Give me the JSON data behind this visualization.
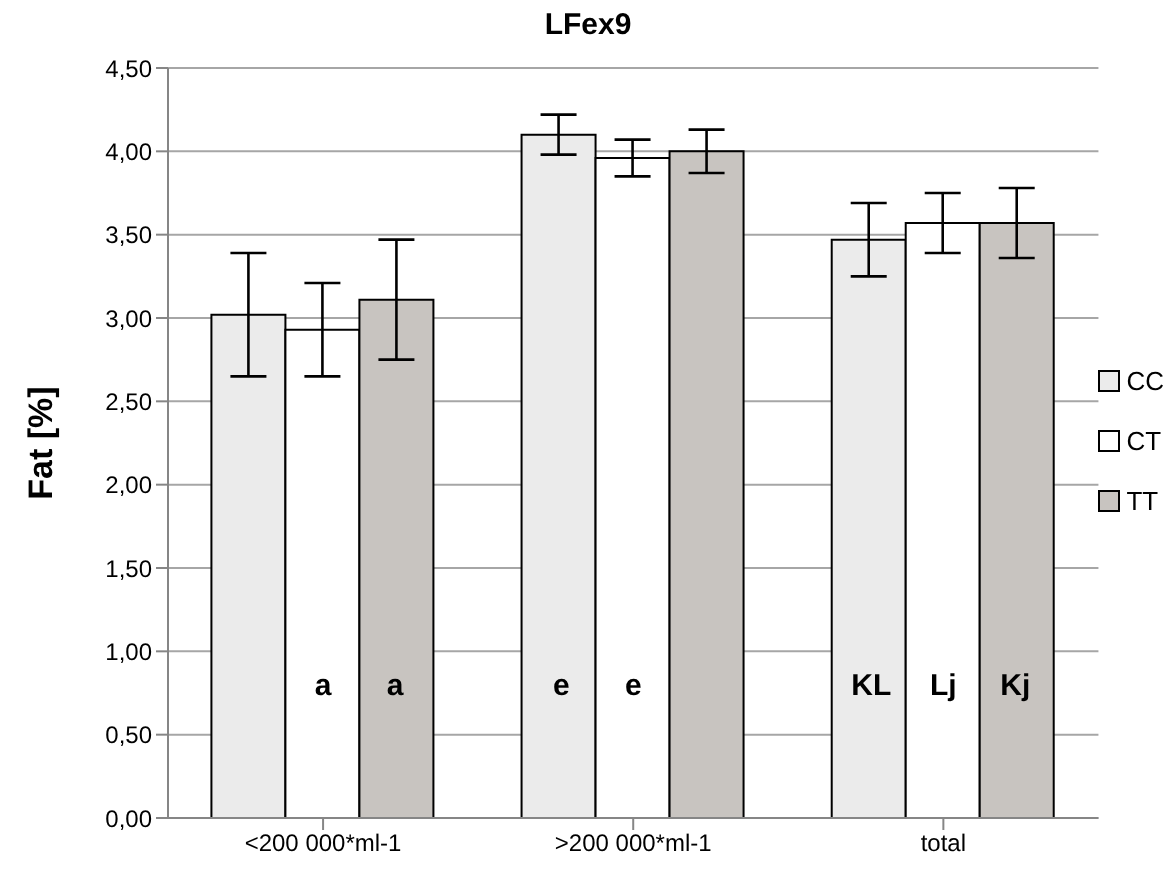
{
  "chart_data": {
    "type": "bar",
    "title": "LFex9",
    "ylabel": "Fat [%]",
    "categories": [
      "<200 000*ml-1",
      ">200 000*ml-1",
      "total"
    ],
    "series": [
      {
        "name": "CC",
        "color": "#ebebeb",
        "values": [
          3.02,
          4.1,
          3.47
        ],
        "errors": [
          0.37,
          0.12,
          0.22
        ]
      },
      {
        "name": "CT",
        "color": "#ffffff",
        "values": [
          2.93,
          3.96,
          3.57
        ],
        "errors": [
          0.28,
          0.11,
          0.18
        ]
      },
      {
        "name": "TT",
        "color": "#c8c4c0",
        "values": [
          3.11,
          4.0,
          3.57
        ],
        "errors": [
          0.36,
          0.13,
          0.21
        ]
      }
    ],
    "ylim": [
      0,
      4.5
    ],
    "yticks": [
      {
        "value": 0,
        "label": "0,00"
      },
      {
        "value": 0.5,
        "label": "0,50"
      },
      {
        "value": 1,
        "label": "1,00"
      },
      {
        "value": 1.5,
        "label": "1,50"
      },
      {
        "value": 2,
        "label": "2,00"
      },
      {
        "value": 2.5,
        "label": "2,50"
      },
      {
        "value": 3,
        "label": "3,00"
      },
      {
        "value": 3.5,
        "label": "3,50"
      },
      {
        "value": 4,
        "label": "4,00"
      },
      {
        "value": 4.5,
        "label": "4,50"
      }
    ],
    "grid": "y",
    "legend": "right",
    "annotations": [
      "a",
      "a",
      "e",
      "e",
      "KL",
      "Lj",
      "Kj"
    ]
  }
}
